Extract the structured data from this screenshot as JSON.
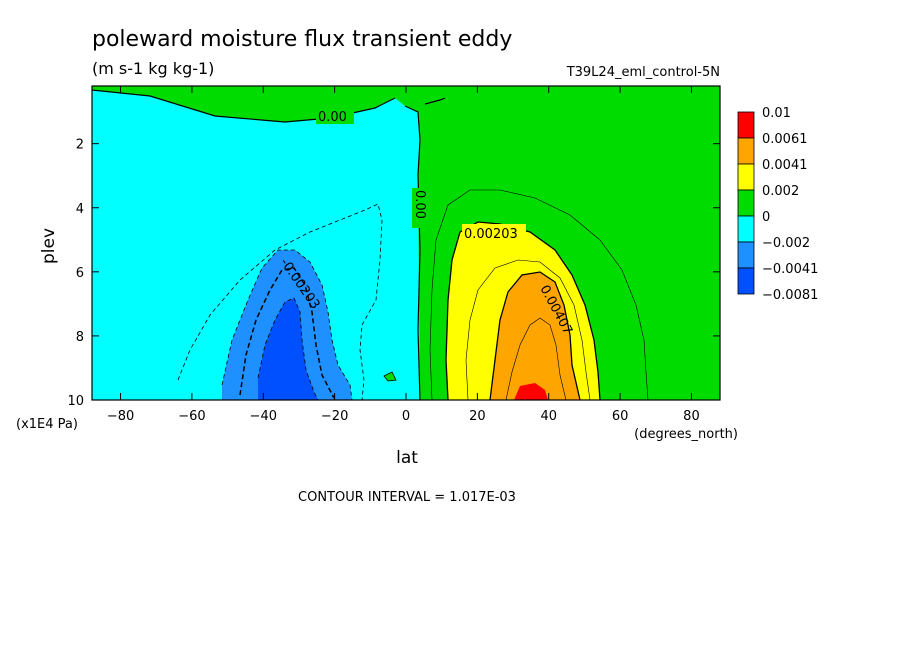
{
  "chart_data": {
    "type": "contour",
    "title": "poleward moisture flux transient eddy",
    "units": "(m s-1 kg kg-1)",
    "experiment": "T39L24_eml_control-5N",
    "xlabel": "lat",
    "xunits": "(degrees_north)",
    "ylabel": "plev",
    "yunits": "(x1E4 Pa)",
    "xlim": [
      -88,
      88
    ],
    "ylim": [
      10,
      0.2
    ],
    "y_inverted": true,
    "xticks": [
      -80,
      -60,
      -40,
      -20,
      0,
      20,
      40,
      60,
      80
    ],
    "yticks": [
      2,
      4,
      6,
      8,
      10
    ],
    "contour_interval_text": "CONTOUR INTERVAL = 1.017E-03",
    "contour_labels": [
      {
        "text": "0.00",
        "lat": -20,
        "plev": 1.0
      },
      {
        "text": "0.00",
        "lat": 5,
        "plev": 4.0
      },
      {
        "text": "-0.00203",
        "lat": -32,
        "plev": 6.6
      },
      {
        "text": "0.00203",
        "lat": 25,
        "plev": 5.2
      },
      {
        "text": "0.00407",
        "lat": 40,
        "plev": 7.5
      }
    ],
    "colorbar": {
      "labels": [
        "0.01",
        "0.0061",
        "0.0041",
        "0.002",
        "0",
        "-0.002",
        "-0.0041",
        "-0.0081"
      ],
      "colors": [
        "#ff0000",
        "#ffa500",
        "#ffff00",
        "#00dc00",
        "#00ffff",
        "#1e90ff",
        "#0050ff"
      ]
    }
  }
}
